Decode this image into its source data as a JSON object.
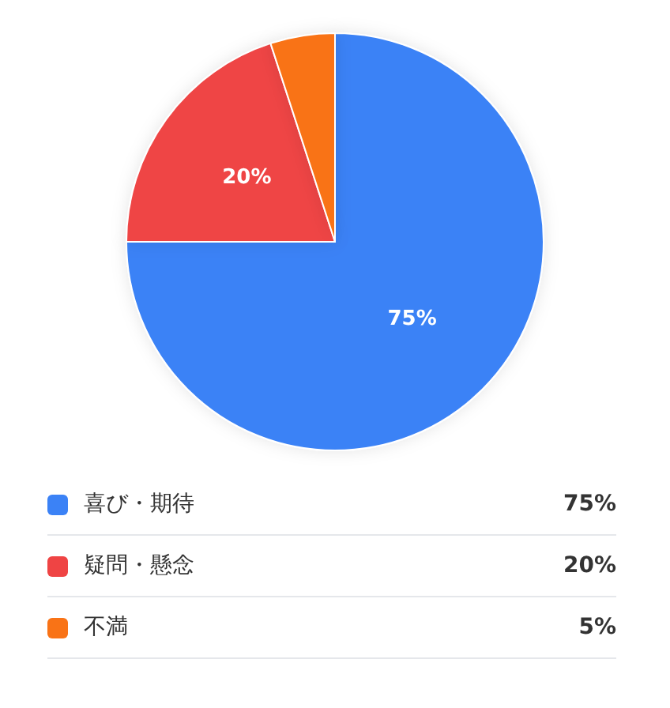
{
  "chart_data": {
    "type": "pie",
    "categories": [
      "喜び・期待",
      "疑問・懸念",
      "不満"
    ],
    "values": [
      75,
      20,
      5
    ],
    "colors": [
      "#3b82f6",
      "#ef4444",
      "#f97316"
    ],
    "value_labels": [
      "75%",
      "20%",
      "5%"
    ],
    "legend": "bottom"
  }
}
